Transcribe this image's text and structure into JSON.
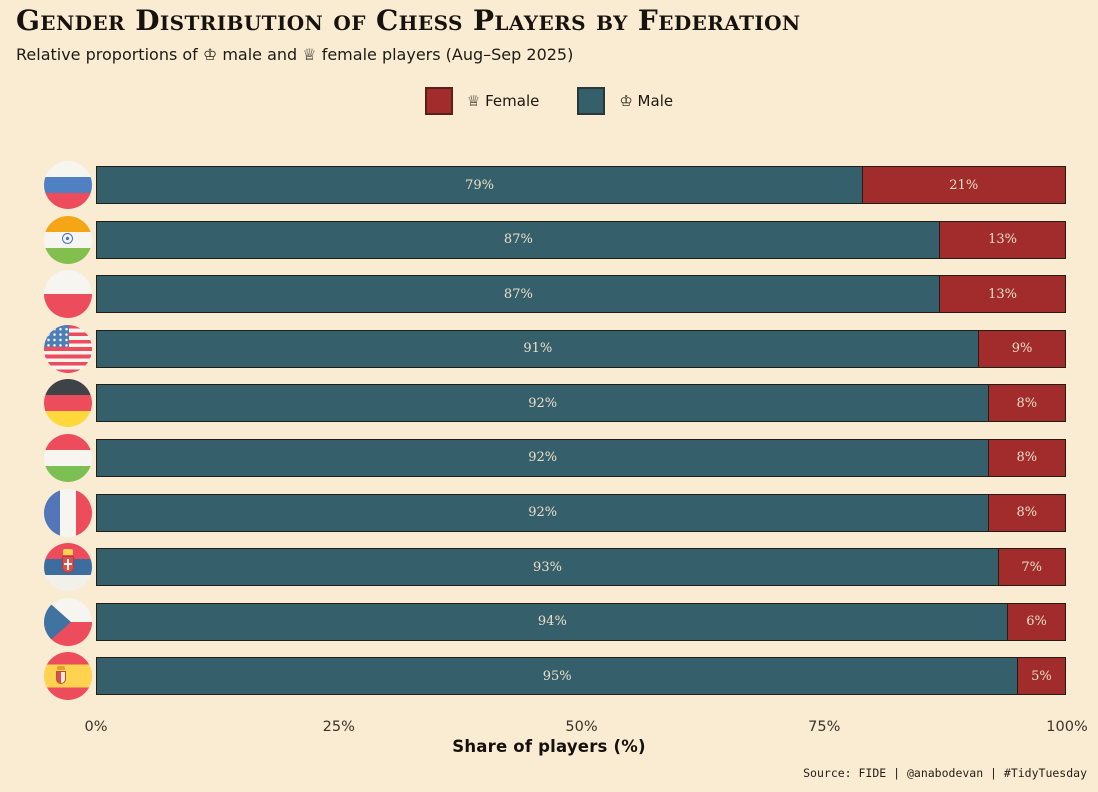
{
  "header": {
    "title": "Gender Distribution of Chess Players by Federation",
    "subtitle": "Relative proportions of ♔ male and ♕ female players (Aug–Sep 2025)"
  },
  "legend": {
    "female_label": "♕ Female",
    "male_label": "♔ Male"
  },
  "colors": {
    "background": "#f9ecd2",
    "male": "#35606b",
    "female": "#a22c2c",
    "bar_border": "#241d16",
    "bar_label": "#ecdfc9"
  },
  "axis": {
    "ticks": [
      "0%",
      "25%",
      "50%",
      "75%",
      "100%"
    ],
    "xlabel": "Share of players (%)"
  },
  "caption": "Source: FIDE | @anabodevan | #TidyTuesday",
  "chart_data": {
    "type": "bar",
    "orientation": "horizontal",
    "stacked": true,
    "title": "Gender Distribution of Chess Players by Federation",
    "subtitle": "Relative proportions of ♔ male and ♕ female players (Aug–Sep 2025)",
    "xlabel": "Share of players (%)",
    "xlim": [
      0,
      100
    ],
    "x_ticks": [
      "0%",
      "25%",
      "50%",
      "75%",
      "100%"
    ],
    "legend_position": "top-center",
    "grid": false,
    "categories": [
      "Russia",
      "India",
      "Poland",
      "United States",
      "Germany",
      "Hungary",
      "France",
      "Serbia",
      "Czech Republic",
      "Spain"
    ],
    "series": [
      {
        "name": "Male",
        "color": "#35606b",
        "values": [
          79,
          87,
          87,
          91,
          92,
          92,
          92,
          93,
          94,
          95
        ]
      },
      {
        "name": "Female",
        "color": "#a22c2c",
        "values": [
          21,
          13,
          13,
          9,
          8,
          8,
          8,
          7,
          6,
          5
        ]
      }
    ]
  },
  "federations": [
    {
      "country": "Russia",
      "male_pct": 79,
      "female_pct": 21,
      "male_label": "79%",
      "female_label": "21%"
    },
    {
      "country": "India",
      "male_pct": 87,
      "female_pct": 13,
      "male_label": "87%",
      "female_label": "13%"
    },
    {
      "country": "Poland",
      "male_pct": 87,
      "female_pct": 13,
      "male_label": "87%",
      "female_label": "13%"
    },
    {
      "country": "United States",
      "male_pct": 91,
      "female_pct": 9,
      "male_label": "91%",
      "female_label": "9%"
    },
    {
      "country": "Germany",
      "male_pct": 92,
      "female_pct": 8,
      "male_label": "92%",
      "female_label": "8%"
    },
    {
      "country": "Hungary",
      "male_pct": 92,
      "female_pct": 8,
      "male_label": "92%",
      "female_label": "8%"
    },
    {
      "country": "France",
      "male_pct": 92,
      "female_pct": 8,
      "male_label": "92%",
      "female_label": "8%"
    },
    {
      "country": "Serbia",
      "male_pct": 93,
      "female_pct": 7,
      "male_label": "93%",
      "female_label": "7%"
    },
    {
      "country": "Czech Republic",
      "male_pct": 94,
      "female_pct": 6,
      "male_label": "94%",
      "female_label": "6%"
    },
    {
      "country": "Spain",
      "male_pct": 95,
      "female_pct": 5,
      "male_label": "95%",
      "female_label": "5%"
    }
  ]
}
